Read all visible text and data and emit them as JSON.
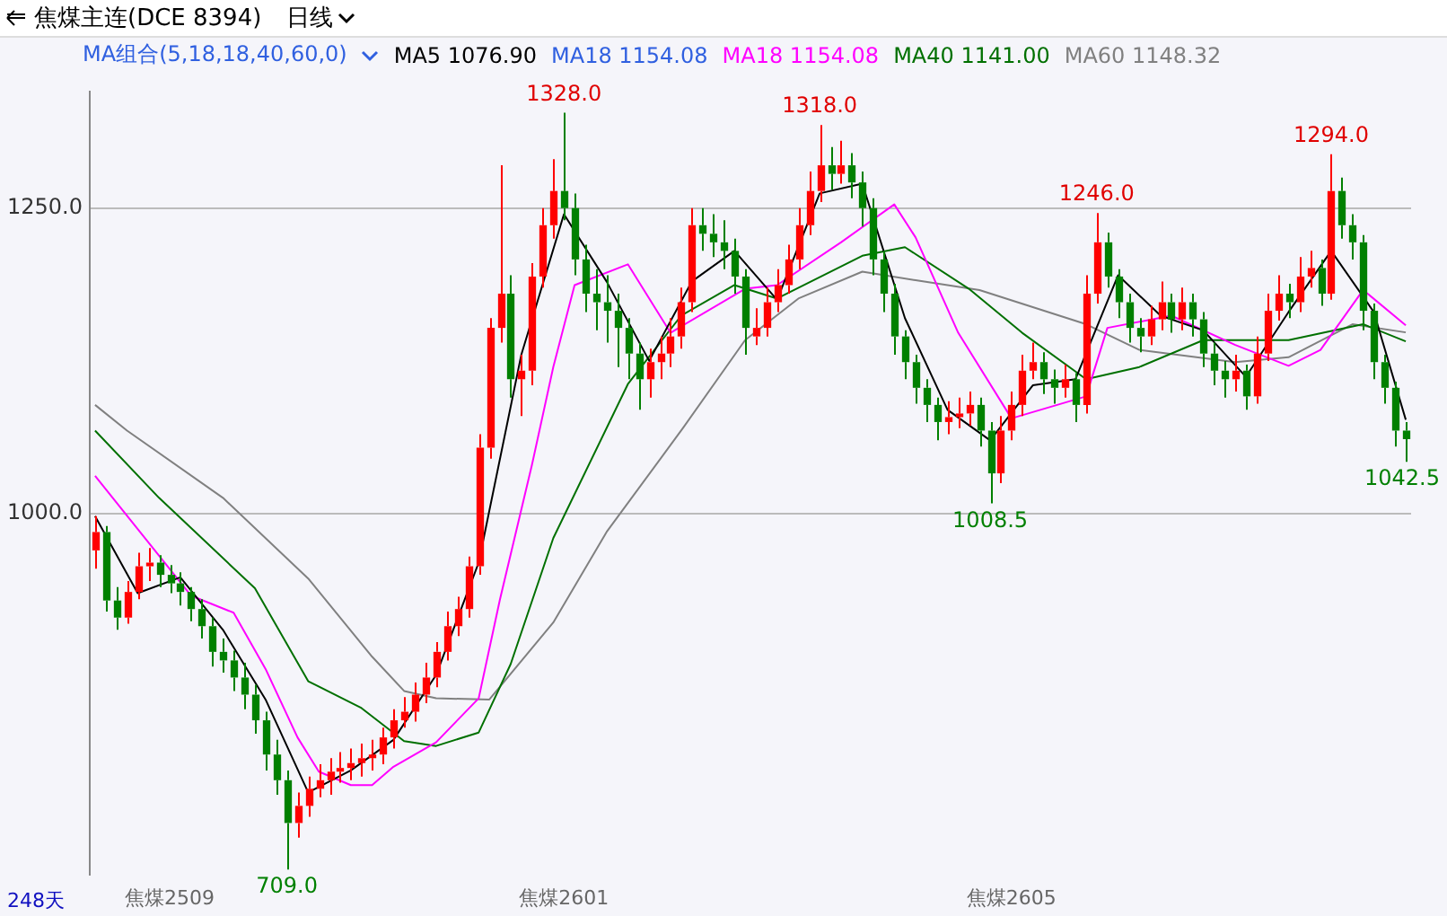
{
  "chart_data": {
    "type": "candlestick",
    "title": "焦煤主连(DCE 8394)",
    "subtitle": "日线",
    "legend_title": "MA组合(5,18,18,40,60,0)",
    "legend": "top left",
    "grid": "y",
    "marker": "none",
    "line_style": "solid",
    "ylim": [
      705,
      1345
    ],
    "yticks": [
      {
        "value": 1000,
        "label": "1000.0"
      },
      {
        "value": 1250,
        "label": "1250.0"
      }
    ],
    "categories": [
      null,
      null,
      null,
      null,
      null,
      null,
      null,
      "焦煤2509",
      null,
      null,
      null,
      null,
      null,
      null,
      null,
      null,
      null,
      null,
      null,
      null,
      null,
      null,
      null,
      null,
      null,
      null,
      null,
      null,
      null,
      null,
      null,
      null,
      null,
      null,
      null,
      null,
      null,
      null,
      null,
      null,
      null,
      null,
      null,
      null,
      "焦煤2601",
      null,
      null,
      null,
      null,
      null,
      null,
      null,
      null,
      null,
      null,
      null,
      null,
      null,
      null,
      null,
      null,
      null,
      null,
      null,
      null,
      null,
      null,
      null,
      null,
      null,
      null,
      null,
      null,
      null,
      null,
      null,
      null,
      null,
      null,
      null,
      null,
      null,
      null,
      null,
      null,
      null,
      "焦煤2605",
      null,
      null,
      null,
      null,
      null,
      null,
      null,
      null,
      null,
      null,
      null,
      null,
      null,
      null,
      null,
      null,
      null,
      null,
      null,
      null,
      null,
      null,
      null,
      null,
      null,
      null,
      null,
      null,
      null,
      null,
      null,
      null,
      null,
      null,
      null,
      null,
      null
    ],
    "ohlc": [
      [
        970,
        998,
        955,
        985
      ],
      [
        985,
        990,
        920,
        929
      ],
      [
        929,
        940,
        905,
        915
      ],
      [
        915,
        945,
        910,
        936
      ],
      [
        936,
        968,
        930,
        957
      ],
      [
        957,
        972,
        945,
        960
      ],
      [
        960,
        966,
        940,
        950
      ],
      [
        950,
        958,
        935,
        943
      ],
      [
        943,
        952,
        925,
        936
      ],
      [
        936,
        940,
        912,
        922
      ],
      [
        922,
        930,
        898,
        908
      ],
      [
        908,
        915,
        875,
        887
      ],
      [
        887,
        898,
        870,
        880
      ],
      [
        880,
        888,
        855,
        866
      ],
      [
        866,
        878,
        840,
        852
      ],
      [
        852,
        860,
        820,
        831
      ],
      [
        831,
        838,
        790,
        803
      ],
      [
        803,
        815,
        770,
        782
      ],
      [
        782,
        790,
        709,
        747
      ],
      [
        747,
        772,
        735,
        761
      ],
      [
        761,
        785,
        752,
        775
      ],
      [
        775,
        795,
        768,
        782
      ],
      [
        782,
        800,
        770,
        789
      ],
      [
        789,
        805,
        780,
        792
      ],
      [
        792,
        808,
        782,
        796
      ],
      [
        796,
        812,
        785,
        800
      ],
      [
        800,
        815,
        790,
        803
      ],
      [
        803,
        825,
        795,
        817
      ],
      [
        817,
        840,
        808,
        831
      ],
      [
        831,
        850,
        825,
        838
      ],
      [
        838,
        862,
        830,
        852
      ],
      [
        852,
        878,
        845,
        866
      ],
      [
        866,
        895,
        858,
        887
      ],
      [
        887,
        920,
        880,
        908
      ],
      [
        908,
        932,
        900,
        922
      ],
      [
        922,
        965,
        915,
        957
      ],
      [
        957,
        1065,
        950,
        1054
      ],
      [
        1054,
        1160,
        1045,
        1152
      ],
      [
        1152,
        1285,
        1140,
        1180
      ],
      [
        1180,
        1195,
        1095,
        1110
      ],
      [
        1110,
        1130,
        1080,
        1117
      ],
      [
        1117,
        1205,
        1105,
        1194
      ],
      [
        1194,
        1250,
        1185,
        1236
      ],
      [
        1236,
        1290,
        1225,
        1264
      ],
      [
        1264,
        1328,
        1240,
        1250
      ],
      [
        1250,
        1262,
        1195,
        1208
      ],
      [
        1208,
        1220,
        1165,
        1180
      ],
      [
        1180,
        1200,
        1150,
        1173
      ],
      [
        1173,
        1195,
        1140,
        1166
      ],
      [
        1166,
        1180,
        1120,
        1152
      ],
      [
        1152,
        1160,
        1110,
        1131
      ],
      [
        1131,
        1140,
        1085,
        1110
      ],
      [
        1110,
        1135,
        1095,
        1124
      ],
      [
        1124,
        1145,
        1110,
        1131
      ],
      [
        1131,
        1160,
        1120,
        1145
      ],
      [
        1145,
        1185,
        1135,
        1173
      ],
      [
        1173,
        1250,
        1165,
        1236
      ],
      [
        1236,
        1250,
        1215,
        1229
      ],
      [
        1229,
        1245,
        1210,
        1222
      ],
      [
        1222,
        1240,
        1200,
        1215
      ],
      [
        1215,
        1225,
        1180,
        1194
      ],
      [
        1194,
        1200,
        1130,
        1152
      ],
      [
        1145,
        1168,
        1138,
        1152
      ],
      [
        1152,
        1185,
        1145,
        1173
      ],
      [
        1173,
        1200,
        1165,
        1187
      ],
      [
        1187,
        1220,
        1180,
        1208
      ],
      [
        1208,
        1250,
        1200,
        1236
      ],
      [
        1236,
        1280,
        1228,
        1264
      ],
      [
        1264,
        1318,
        1255,
        1285
      ],
      [
        1285,
        1300,
        1265,
        1278
      ],
      [
        1278,
        1305,
        1270,
        1285
      ],
      [
        1285,
        1295,
        1258,
        1271
      ],
      [
        1271,
        1280,
        1235,
        1250
      ],
      [
        1250,
        1258,
        1195,
        1208
      ],
      [
        1208,
        1215,
        1165,
        1180
      ],
      [
        1180,
        1188,
        1130,
        1145
      ],
      [
        1145,
        1150,
        1110,
        1124
      ],
      [
        1124,
        1130,
        1090,
        1103
      ],
      [
        1103,
        1110,
        1075,
        1089
      ],
      [
        1089,
        1095,
        1060,
        1075
      ],
      [
        1075,
        1092,
        1065,
        1079
      ],
      [
        1079,
        1095,
        1070,
        1082
      ],
      [
        1082,
        1100,
        1072,
        1089
      ],
      [
        1089,
        1095,
        1055,
        1068
      ],
      [
        1068,
        1075,
        1008.5,
        1033
      ],
      [
        1033,
        1080,
        1025,
        1068
      ],
      [
        1068,
        1100,
        1060,
        1089
      ],
      [
        1089,
        1130,
        1080,
        1117
      ],
      [
        1117,
        1140,
        1110,
        1124
      ],
      [
        1124,
        1132,
        1098,
        1110
      ],
      [
        1110,
        1118,
        1090,
        1103
      ],
      [
        1103,
        1122,
        1095,
        1110
      ],
      [
        1110,
        1115,
        1075,
        1089
      ],
      [
        1089,
        1195,
        1082,
        1180
      ],
      [
        1180,
        1246,
        1172,
        1222
      ],
      [
        1222,
        1230,
        1185,
        1194
      ],
      [
        1194,
        1200,
        1160,
        1173
      ],
      [
        1173,
        1180,
        1140,
        1152
      ],
      [
        1152,
        1160,
        1132,
        1145
      ],
      [
        1145,
        1170,
        1138,
        1159
      ],
      [
        1159,
        1190,
        1150,
        1173
      ],
      [
        1173,
        1180,
        1148,
        1159
      ],
      [
        1159,
        1185,
        1150,
        1173
      ],
      [
        1173,
        1180,
        1145,
        1159
      ],
      [
        1159,
        1165,
        1120,
        1131
      ],
      [
        1131,
        1140,
        1105,
        1117
      ],
      [
        1117,
        1125,
        1095,
        1110
      ],
      [
        1110,
        1130,
        1100,
        1117
      ],
      [
        1117,
        1122,
        1085,
        1096
      ],
      [
        1096,
        1145,
        1090,
        1131
      ],
      [
        1131,
        1180,
        1125,
        1166
      ],
      [
        1166,
        1195,
        1158,
        1180
      ],
      [
        1180,
        1188,
        1160,
        1173
      ],
      [
        1173,
        1210,
        1165,
        1194
      ],
      [
        1194,
        1215,
        1185,
        1201
      ],
      [
        1201,
        1208,
        1170,
        1180
      ],
      [
        1180,
        1294,
        1175,
        1264
      ],
      [
        1264,
        1275,
        1225,
        1236
      ],
      [
        1236,
        1245,
        1208,
        1222
      ],
      [
        1222,
        1228,
        1150,
        1166
      ],
      [
        1166,
        1172,
        1110,
        1124
      ],
      [
        1124,
        1130,
        1090,
        1103
      ],
      [
        1103,
        1108,
        1055,
        1068
      ],
      [
        1068,
        1075,
        1042.5,
        1061
      ]
    ],
    "colors": [
      "#ff0000",
      "#008000",
      "#008000",
      "#ff0000",
      "#ff0000",
      "#ff0000",
      "#008000",
      "#008000",
      "#008000",
      "#008000",
      "#008000",
      "#008000",
      "#008000",
      "#008000",
      "#008000",
      "#008000",
      "#008000",
      "#008000",
      "#008000",
      "#ff0000",
      "#ff0000",
      "#ff0000",
      "#ff0000",
      "#ff0000",
      "#ff0000",
      "#ff0000",
      "#ff0000",
      "#ff0000",
      "#ff0000",
      "#ff0000",
      "#ff0000",
      "#ff0000",
      "#ff0000",
      "#ff0000",
      "#ff0000",
      "#ff0000",
      "#ff0000",
      "#ff0000",
      "#ff0000",
      "#008000",
      "#ff0000",
      "#ff0000",
      "#ff0000",
      "#ff0000",
      "#008000",
      "#008000",
      "#008000",
      "#008000",
      "#008000",
      "#008000",
      "#008000",
      "#008000",
      "#ff0000",
      "#ff0000",
      "#ff0000",
      "#ff0000",
      "#ff0000",
      "#008000",
      "#008000",
      "#008000",
      "#008000",
      "#008000",
      "#ff0000",
      "#ff0000",
      "#ff0000",
      "#ff0000",
      "#ff0000",
      "#ff0000",
      "#ff0000",
      "#008000",
      "#ff0000",
      "#008000",
      "#008000",
      "#008000",
      "#008000",
      "#008000",
      "#008000",
      "#008000",
      "#008000",
      "#008000",
      "#ff0000",
      "#ff0000",
      "#ff0000",
      "#008000",
      "#008000",
      "#ff0000",
      "#ff0000",
      "#ff0000",
      "#ff0000",
      "#008000",
      "#008000",
      "#ff0000",
      "#008000",
      "#ff0000",
      "#ff0000",
      "#008000",
      "#008000",
      "#008000",
      "#008000",
      "#ff0000",
      "#ff0000",
      "#008000",
      "#ff0000",
      "#008000",
      "#008000",
      "#008000",
      "#008000",
      "#ff0000",
      "#008000",
      "#ff0000",
      "#ff0000",
      "#ff0000",
      "#008000",
      "#ff0000",
      "#ff0000",
      "#008000",
      "#ff0000",
      "#008000",
      "#008000",
      "#008000",
      "#008000",
      "#008000",
      "#008000",
      "#008000"
    ],
    "series": [
      {
        "type": "line",
        "name": "MA5 1076.90",
        "color": "#000000",
        "values": [
          998,
          null,
          null,
          null,
          935,
          null,
          null,
          null,
          948,
          null,
          null,
          null,
          905,
          null,
          null,
          null,
          848,
          null,
          null,
          null,
          772,
          null,
          null,
          null,
          790,
          null,
          null,
          null,
          815,
          null,
          null,
          null,
          868,
          null,
          null,
          null,
          960,
          null,
          null,
          null,
          1130,
          null,
          null,
          null,
          1245,
          null,
          null,
          null,
          1190,
          null,
          null,
          null,
          1125,
          null,
          null,
          null,
          1190,
          null,
          null,
          null,
          1215,
          null,
          null,
          null,
          1175,
          null,
          null,
          null,
          1262,
          null,
          null,
          null,
          1270,
          null,
          null,
          null,
          1160,
          null,
          null,
          null,
          1085,
          null,
          null,
          null,
          1060,
          null,
          null,
          null,
          1105,
          null,
          null,
          null,
          1110,
          null,
          null,
          null,
          1195,
          null,
          null,
          null,
          1162,
          null,
          null,
          null,
          1150,
          null,
          null,
          null,
          1112,
          null,
          null,
          null,
          1165,
          null,
          null,
          null,
          1215,
          null,
          null,
          null,
          1165,
          null,
          null,
          1076.9
        ]
      },
      {
        "type": "line",
        "name": "MA18 1154.08",
        "color": "#ff00ff",
        "values": [
          1031,
          null,
          null,
          null,
          null,
          null,
          null,
          null,
          null,
          933,
          null,
          null,
          null,
          919,
          null,
          null,
          873,
          null,
          null,
          817,
          null,
          789,
          null,
          null,
          778,
          null,
          778,
          null,
          793,
          null,
          null,
          null,
          813,
          null,
          null,
          null,
          849,
          null,
          930,
          null,
          null,
          1040,
          null,
          1120,
          null,
          1187,
          null,
          null,
          null,
          null,
          1204,
          null,
          null,
          null,
          1148,
          null,
          null,
          null,
          null,
          null,
          null,
          1184,
          null,
          null,
          1187,
          null,
          null,
          null,
          null,
          null,
          1222,
          null,
          null,
          null,
          null,
          1253,
          null,
          1226,
          null,
          null,
          null,
          1148,
          null,
          null,
          null,
          null,
          1078,
          null,
          null,
          null,
          null,
          null,
          null,
          1096,
          null,
          1152,
          null,
          null,
          null,
          null,
          null,
          1162,
          null,
          null,
          null,
          null,
          null,
          1138,
          null,
          null,
          null,
          null,
          1121,
          null,
          null,
          1134,
          null,
          null,
          null,
          1183,
          null,
          null,
          null,
          1154.08
        ]
      },
      {
        "type": "line",
        "name": "MA40 1141.00",
        "color": "#007000",
        "values": [
          1068,
          null,
          null,
          null,
          null,
          null,
          1013,
          null,
          null,
          null,
          null,
          null,
          null,
          null,
          null,
          939,
          null,
          null,
          null,
          null,
          863,
          null,
          null,
          null,
          null,
          841,
          null,
          null,
          null,
          814,
          null,
          null,
          810,
          null,
          null,
          null,
          821,
          null,
          null,
          877,
          null,
          null,
          null,
          980,
          null,
          null,
          null,
          null,
          null,
          null,
          1106,
          null,
          null,
          null,
          null,
          1162,
          null,
          null,
          null,
          null,
          1187,
          null,
          null,
          null,
          1176,
          null,
          null,
          null,
          null,
          null,
          null,
          null,
          1211,
          null,
          null,
          null,
          1218,
          null,
          null,
          null,
          null,
          null,
          1184,
          null,
          null,
          null,
          null,
          1148,
          null,
          null,
          null,
          null,
          null,
          1110,
          null,
          null,
          null,
          null,
          1120,
          null,
          null,
          null,
          null,
          null,
          1142,
          null,
          null,
          null,
          null,
          null,
          null,
          null,
          1142,
          null,
          null,
          null,
          null,
          null,
          null,
          1155,
          null,
          null,
          null,
          1141
        ]
      },
      {
        "type": "line",
        "name": "MA60 1148.32",
        "color": "#808080",
        "values": [
          1089,
          null,
          null,
          1068,
          null,
          null,
          null,
          null,
          null,
          null,
          null,
          null,
          1013,
          null,
          null,
          null,
          null,
          null,
          null,
          null,
          947,
          null,
          null,
          null,
          null,
          null,
          883,
          null,
          null,
          855,
          null,
          null,
          849,
          null,
          null,
          null,
          null,
          848,
          null,
          null,
          null,
          null,
          null,
          911,
          null,
          null,
          null,
          null,
          985,
          null,
          null,
          null,
          null,
          null,
          null,
          1068,
          null,
          null,
          null,
          null,
          null,
          1142,
          null,
          null,
          null,
          null,
          1176,
          null,
          null,
          null,
          null,
          null,
          1198,
          null,
          null,
          null,
          null,
          1191,
          null,
          null,
          null,
          null,
          null,
          1183,
          null,
          null,
          null,
          null,
          null,
          null,
          null,
          null,
          null,
          1155,
          null,
          null,
          null,
          null,
          1134,
          null,
          null,
          null,
          null,
          null,
          null,
          null,
          null,
          1124,
          null,
          null,
          null,
          null,
          1128,
          null,
          null,
          null,
          null,
          null,
          1155,
          null,
          null,
          null,
          null,
          1148.32
        ]
      }
    ],
    "annotations": [
      "MA18 1154.08",
      "248天",
      {
        "text": "1328.0",
        "y": 1328
      },
      {
        "text": "1318.0",
        "y": 1318
      },
      {
        "text": "1246.0",
        "y": 1246
      },
      {
        "text": "1294.0",
        "y": 1294
      },
      {
        "text": "709.0",
        "y": 709
      },
      {
        "text": "1008.5",
        "y": 1008.5
      },
      {
        "text": "1042.5",
        "y": 1042.5
      }
    ]
  }
}
